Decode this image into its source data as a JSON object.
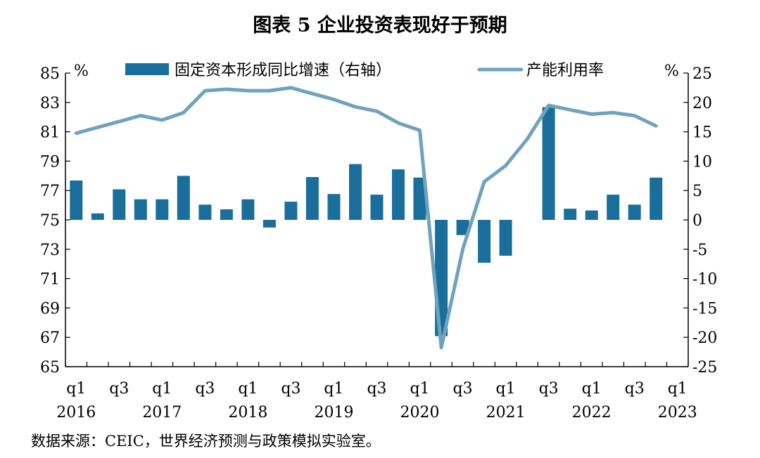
{
  "chart_data": {
    "type": "bar+line",
    "title": "图表 5 企业投资表现好于预期",
    "source": "数据来源：CEIC，世界经济预测与政策模拟实验室。",
    "legend_position": "top",
    "grid": false,
    "x": [
      "2016q1",
      "2016q2",
      "2016q3",
      "2016q4",
      "2017q1",
      "2017q2",
      "2017q3",
      "2017q4",
      "2018q1",
      "2018q2",
      "2018q3",
      "2018q4",
      "2019q1",
      "2019q2",
      "2019q3",
      "2019q4",
      "2020q1",
      "2020q2",
      "2020q3",
      "2020q4",
      "2021q1",
      "2021q2",
      "2021q3",
      "2021q4",
      "2022q1",
      "2022q2",
      "2022q3",
      "2022q4",
      "2023q1"
    ],
    "x_tick_labels": [
      {
        "index": 0,
        "quarter": "q1",
        "year": "2016"
      },
      {
        "index": 2,
        "quarter": "q3",
        "year": ""
      },
      {
        "index": 4,
        "quarter": "q1",
        "year": "2017"
      },
      {
        "index": 6,
        "quarter": "q3",
        "year": ""
      },
      {
        "index": 8,
        "quarter": "q1",
        "year": "2018"
      },
      {
        "index": 10,
        "quarter": "q3",
        "year": ""
      },
      {
        "index": 12,
        "quarter": "q1",
        "year": "2019"
      },
      {
        "index": 14,
        "quarter": "q3",
        "year": ""
      },
      {
        "index": 16,
        "quarter": "q1",
        "year": "2020"
      },
      {
        "index": 18,
        "quarter": "q3",
        "year": ""
      },
      {
        "index": 20,
        "quarter": "q1",
        "year": "2021"
      },
      {
        "index": 22,
        "quarter": "q3",
        "year": ""
      },
      {
        "index": 24,
        "quarter": "q1",
        "year": "2022"
      },
      {
        "index": 26,
        "quarter": "q3",
        "year": ""
      },
      {
        "index": 28,
        "quarter": "q1",
        "year": "2023"
      }
    ],
    "y_left": {
      "label": "%",
      "lim": [
        65,
        85
      ],
      "ticks": [
        65,
        67,
        69,
        71,
        73,
        75,
        77,
        79,
        81,
        83,
        85
      ]
    },
    "y_right": {
      "label": "%",
      "lim": [
        -25,
        25
      ],
      "ticks": [
        -25,
        -20,
        -15,
        -10,
        -5,
        0,
        5,
        10,
        15,
        20,
        25
      ]
    },
    "series": [
      {
        "name": "固定资本形成同比增速（右轴）",
        "type": "bar",
        "axis": "right",
        "color": "#1a6e9c",
        "values": [
          6.7,
          1.1,
          5.2,
          3.5,
          3.5,
          7.5,
          2.6,
          1.8,
          3.5,
          -1.3,
          3.1,
          7.3,
          4.4,
          9.5,
          4.3,
          8.6,
          7.2,
          -19.8,
          -2.6,
          -7.3,
          -6.1,
          0,
          19.2,
          1.9,
          1.6,
          4.3,
          2.6,
          7.2,
          null
        ]
      },
      {
        "name": "产能利用率",
        "type": "line",
        "axis": "left",
        "color": "#6fa2bd",
        "values": [
          80.9,
          81.3,
          81.7,
          82.1,
          81.8,
          82.3,
          83.8,
          83.9,
          83.8,
          83.8,
          84.0,
          83.6,
          83.2,
          82.7,
          82.4,
          81.6,
          81.1,
          66.3,
          73.0,
          77.6,
          78.7,
          80.5,
          82.8,
          82.5,
          82.2,
          82.3,
          82.1,
          81.4,
          null
        ]
      }
    ]
  }
}
